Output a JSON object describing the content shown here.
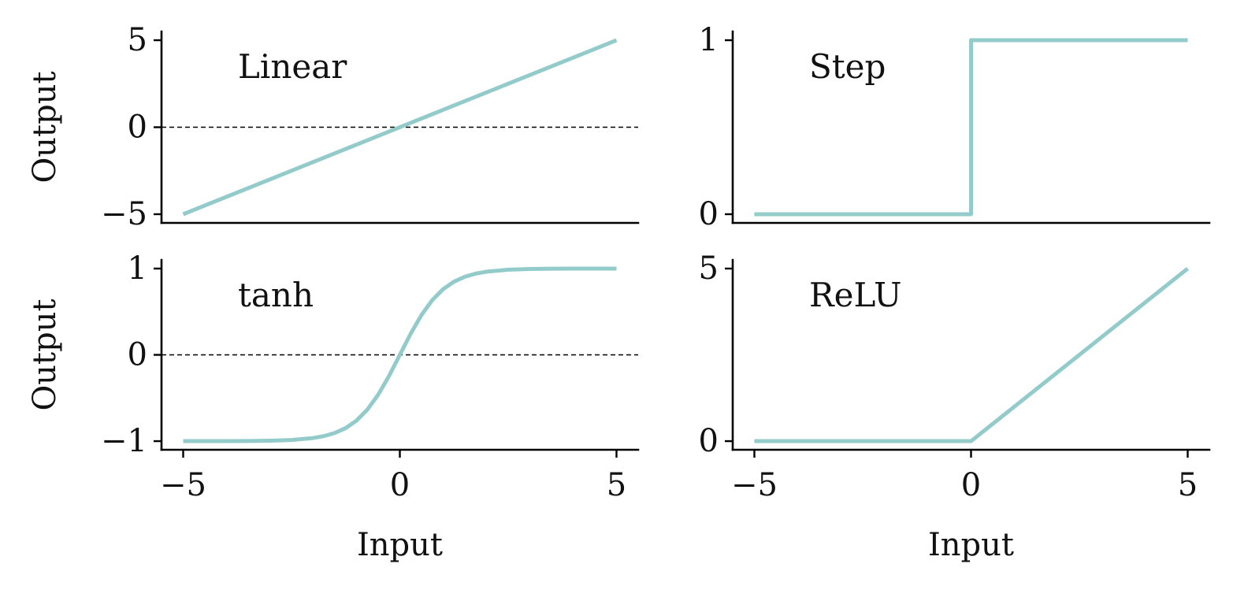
{
  "figure": {
    "line_color": "#92cbca",
    "axis_color": "#000000",
    "zero_line_color": "#000000"
  },
  "chart_data": [
    {
      "type": "line",
      "panel_label": "Linear",
      "xlabel": "",
      "ylabel": "Output",
      "xlim": [
        -5.5,
        5.5
      ],
      "ylim": [
        -5.5,
        5.5
      ],
      "xticks": [],
      "yticks": [
        -5,
        0,
        5
      ],
      "zero_line": true,
      "grid": false,
      "series": [
        {
          "x": [
            -5,
            5
          ],
          "y": [
            -5,
            5
          ]
        }
      ]
    },
    {
      "type": "line",
      "panel_label": "Step",
      "xlabel": "",
      "ylabel": "",
      "xlim": [
        -5.5,
        5.5
      ],
      "ylim": [
        -0.05,
        1.05
      ],
      "xticks": [],
      "yticks": [
        0,
        1
      ],
      "zero_line": false,
      "grid": false,
      "series": [
        {
          "x": [
            -5,
            0,
            0,
            5
          ],
          "y": [
            0,
            0,
            1,
            1
          ]
        }
      ]
    },
    {
      "type": "line",
      "panel_label": "tanh",
      "xlabel": "Input",
      "ylabel": "Output",
      "xlim": [
        -5.5,
        5.5
      ],
      "ylim": [
        -1.1,
        1.1
      ],
      "xticks": [
        -5,
        0,
        5
      ],
      "yticks": [
        -1,
        0,
        1
      ],
      "zero_line": true,
      "grid": false,
      "series": [
        {
          "x": [
            -5,
            -4.5,
            -4,
            -3.5,
            -3,
            -2.5,
            -2,
            -1.75,
            -1.5,
            -1.25,
            -1,
            -0.75,
            -0.5,
            -0.25,
            0,
            0.25,
            0.5,
            0.75,
            1,
            1.25,
            1.5,
            1.75,
            2,
            2.5,
            3,
            3.5,
            4,
            4.5,
            5
          ],
          "y": [
            -0.9999,
            -0.9998,
            -0.9993,
            -0.9982,
            -0.9951,
            -0.9866,
            -0.964,
            -0.9414,
            -0.9051,
            -0.8483,
            -0.7616,
            -0.6351,
            -0.4621,
            -0.2449,
            0,
            0.2449,
            0.4621,
            0.6351,
            0.7616,
            0.8483,
            0.9051,
            0.9414,
            0.964,
            0.9866,
            0.9951,
            0.9982,
            0.9993,
            0.9998,
            0.9999
          ]
        }
      ]
    },
    {
      "type": "line",
      "panel_label": "ReLU",
      "xlabel": "Input",
      "ylabel": "",
      "xlim": [
        -5.5,
        5.5
      ],
      "ylim": [
        -0.25,
        5.25
      ],
      "xticks": [
        -5,
        0,
        5
      ],
      "yticks": [
        0,
        5
      ],
      "zero_line": false,
      "grid": false,
      "series": [
        {
          "x": [
            -5,
            0,
            5
          ],
          "y": [
            0,
            0,
            5
          ]
        }
      ]
    }
  ]
}
